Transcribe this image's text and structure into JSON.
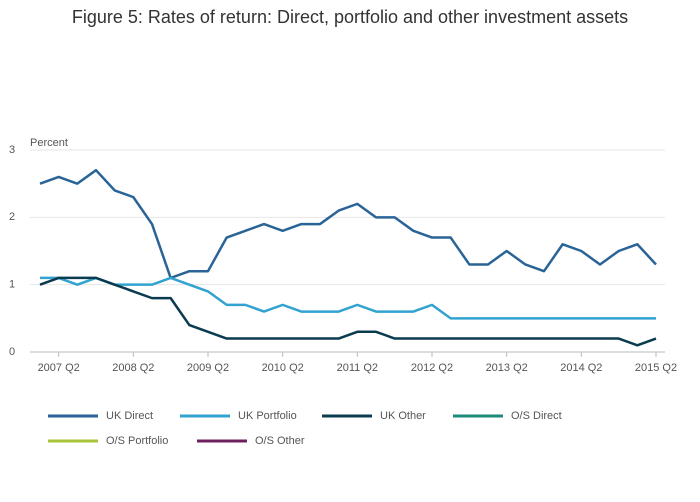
{
  "chart_data": {
    "type": "line",
    "title": "Figure 5: Rates of return: Direct, portfolio and other investment assets",
    "y_label": "Percent",
    "categories": [
      null,
      "2007 Q2",
      null,
      null,
      null,
      "2008 Q2",
      null,
      null,
      null,
      "2009 Q2",
      null,
      null,
      null,
      "2010 Q2",
      null,
      null,
      null,
      "2011 Q2",
      null,
      null,
      null,
      "2012 Q2",
      null,
      null,
      null,
      "2013 Q2",
      null,
      null,
      null,
      "2014 Q2",
      null,
      null,
      null,
      "2015 Q2"
    ],
    "series": [
      {
        "name": "UK Direct",
        "color": "#2a6496",
        "values": [
          2.5,
          2.6,
          2.5,
          2.7,
          2.4,
          2.3,
          1.9,
          1.1,
          1.2,
          1.2,
          1.7,
          1.8,
          1.9,
          1.8,
          1.9,
          1.9,
          2.1,
          2.2,
          2.0,
          2.0,
          1.8,
          1.7,
          1.7,
          1.3,
          1.3,
          1.5,
          1.3,
          1.2,
          1.6,
          1.5,
          1.3,
          1.5,
          1.6,
          1.3
        ]
      },
      {
        "name": "UK Portfolio",
        "color": "#32a3d0",
        "values": [
          1.1,
          1.1,
          1.0,
          1.1,
          1.0,
          1.0,
          1.0,
          1.1,
          1.0,
          0.9,
          0.7,
          0.7,
          0.6,
          0.7,
          0.6,
          0.6,
          0.6,
          0.7,
          0.6,
          0.6,
          0.6,
          0.7,
          0.5,
          0.5,
          0.5,
          0.5,
          0.5,
          0.5,
          0.5,
          0.5,
          0.5,
          0.5,
          0.5,
          0.5
        ]
      },
      {
        "name": "UK Other",
        "color": "#0b3b4f",
        "values": [
          1.0,
          1.1,
          1.1,
          1.1,
          1.0,
          0.9,
          0.8,
          0.8,
          0.4,
          0.3,
          0.2,
          0.2,
          0.2,
          0.2,
          0.2,
          0.2,
          0.2,
          0.3,
          0.3,
          0.2,
          0.2,
          0.2,
          0.2,
          0.2,
          0.2,
          0.2,
          0.2,
          0.2,
          0.2,
          0.2,
          0.2,
          0.2,
          0.1,
          0.2
        ]
      },
      {
        "name": "O/S Direct",
        "color": "#1b8a7a"
      },
      {
        "name": "O/S Portfolio",
        "color": "#a8c43a"
      },
      {
        "name": "O/S Other",
        "color": "#6d1f5e"
      }
    ],
    "ylim": [
      0,
      3
    ],
    "yticks": [
      0,
      1,
      2,
      3
    ],
    "grid": true
  }
}
